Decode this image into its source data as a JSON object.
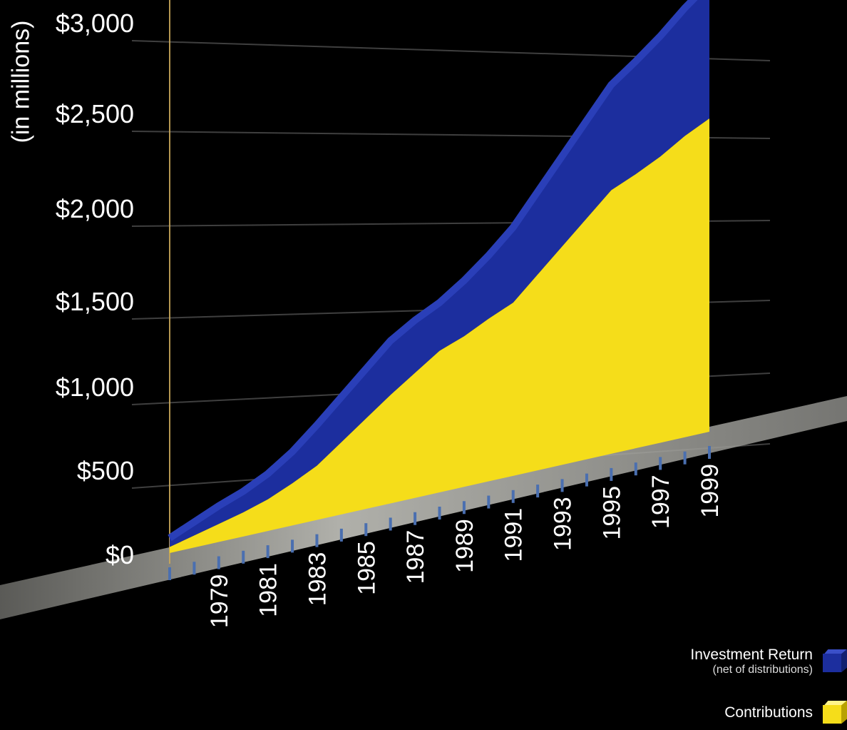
{
  "chart_data": {
    "type": "area",
    "ylabel": "(in millions)",
    "ylim": [
      0,
      3000
    ],
    "y_ticks": [
      "$0",
      "$500",
      "$1,000",
      "$1,500",
      "$2,000",
      "$2,500",
      "$3,000"
    ],
    "x_tick_labels": [
      "1979",
      "1981",
      "1983",
      "1985",
      "1987",
      "1989",
      "1991",
      "1993",
      "1995",
      "1997",
      "1999"
    ],
    "x": [
      1977,
      1978,
      1979,
      1980,
      1981,
      1982,
      1983,
      1984,
      1985,
      1986,
      1987,
      1988,
      1989,
      1990,
      1991,
      1992,
      1993,
      1994,
      1995,
      1996,
      1997,
      1998,
      1999
    ],
    "series": [
      {
        "name": "Contributions",
        "color": "#f5dd1a",
        "values": [
          40,
          80,
          120,
          160,
          210,
          280,
          360,
          480,
          600,
          720,
          830,
          940,
          1000,
          1080,
          1150,
          1300,
          1450,
          1600,
          1750,
          1820,
          1900,
          2000,
          2080
        ]
      },
      {
        "name": "Investment Return",
        "color": "#1c2e9e",
        "values": [
          60,
          90,
          120,
          140,
          170,
          210,
          270,
          300,
          330,
          360,
          350,
          320,
          370,
          420,
          500,
          550,
          600,
          650,
          700,
          750,
          800,
          850,
          900
        ]
      }
    ],
    "legend": {
      "placement": "bottom-right",
      "investment_label": "Investment Return",
      "investment_sub": "(net of distributions)",
      "contributions_label": "Contributions"
    },
    "colors": {
      "investment": "#1c2e9e",
      "contributions": "#f5dd1a",
      "background": "#000000"
    }
  }
}
